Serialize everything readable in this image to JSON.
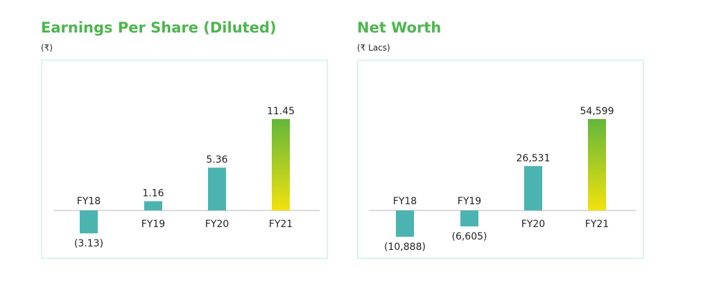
{
  "colors": {
    "title": "#4cb64e",
    "bar": "#4bb4b0",
    "gradient_top": "#62b73a",
    "gradient_bottom": "#f2e20e",
    "axis": "#b5b5b5",
    "border": "#dcf2f2",
    "text": "#222222"
  },
  "chart_data": [
    {
      "type": "bar",
      "title": "Earnings Per Share (Diluted)",
      "subtitle": "(₹)",
      "categories": [
        "FY18",
        "FY19",
        "FY20",
        "FY21"
      ],
      "values": [
        -3.13,
        1.16,
        5.36,
        11.45
      ],
      "value_labels": [
        "(3.13)",
        "1.16",
        "5.36",
        "11.45"
      ],
      "highlight": "FY21",
      "ylim": [
        -3.6,
        11.45
      ],
      "grid": false,
      "legend": "none"
    },
    {
      "type": "bar",
      "title": "Net Worth",
      "subtitle": "(₹ Lacs)",
      "categories": [
        "FY18",
        "FY19",
        "FY20",
        "FY21"
      ],
      "values": [
        -10888,
        -6605,
        26531,
        54599
      ],
      "value_labels": [
        "(10,888)",
        "(6,605)",
        "26,531",
        "54,599"
      ],
      "highlight": "FY21",
      "ylim": [
        -10888,
        54599
      ],
      "grid": false,
      "legend": "none"
    }
  ]
}
